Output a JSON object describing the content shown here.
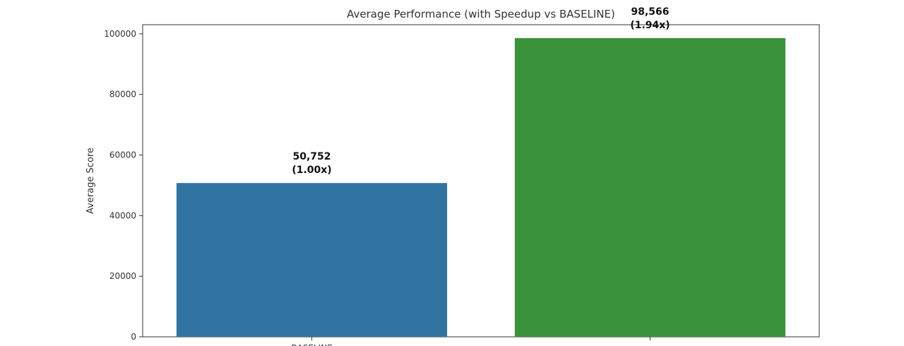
{
  "chart_data": {
    "type": "bar",
    "title": "Average Performance (with Speedup vs BASELINE)",
    "xlabel": "",
    "ylabel": "Average Score",
    "ylim": [
      0,
      103000
    ],
    "yticks": [
      0,
      20000,
      40000,
      60000,
      80000,
      100000
    ],
    "grid": false,
    "categories": [
      "BASELINE",
      ""
    ],
    "values": [
      50752,
      98566
    ],
    "value_labels": [
      "50,752",
      "98,566"
    ],
    "speedup_labels": [
      "(1.00x)",
      "(1.94x)"
    ],
    "colors": [
      "#3274a1",
      "#3a923a"
    ]
  }
}
